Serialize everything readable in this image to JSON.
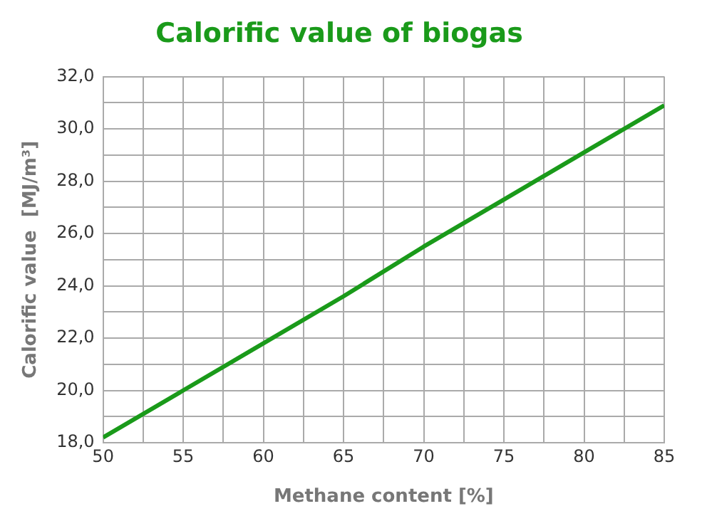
{
  "chart_data": {
    "type": "line",
    "title": "Calorific value of biogas",
    "xlabel": "Methane content [%]",
    "ylabel": "Calorific value  [MJ/m³]",
    "x": [
      50,
      55,
      60,
      65,
      70,
      75,
      80,
      85
    ],
    "series": [
      {
        "color": "#1a9a1a",
        "values": [
          18.2,
          20.0,
          21.8,
          23.6,
          25.5,
          27.3,
          29.1,
          30.9
        ]
      }
    ],
    "xlim": [
      50,
      85
    ],
    "xticks": [
      50,
      {
        "value": 52.5,
        "label": null
      },
      55,
      {
        "value": 57.5,
        "label": null
      },
      60,
      {
        "value": 62.5,
        "label": null
      },
      65,
      {
        "value": 67.5,
        "label": null
      },
      70,
      {
        "value": 72.5,
        "label": null
      },
      75,
      {
        "value": 77.5,
        "label": null
      },
      80,
      {
        "value": 82.5,
        "label": null
      },
      85
    ],
    "ylim": [
      18,
      32
    ],
    "yticks": [
      {
        "value": 18,
        "label": "18,0"
      },
      {
        "value": 19,
        "label": null
      },
      {
        "value": 20,
        "label": "20,0"
      },
      {
        "value": 21,
        "label": null
      },
      {
        "value": 22,
        "label": "22,0"
      },
      {
        "value": 23,
        "label": null
      },
      {
        "value": 24,
        "label": "24,0"
      },
      {
        "value": 25,
        "label": null
      },
      {
        "value": 26,
        "label": "26,0"
      },
      {
        "value": 27,
        "label": null
      },
      {
        "value": 28,
        "label": "28,0"
      },
      {
        "value": 29,
        "label": null
      },
      {
        "value": 30,
        "label": "30,0"
      },
      {
        "value": 31,
        "label": null
      },
      {
        "value": 32,
        "label": "32,0"
      }
    ],
    "grid": true,
    "legend": false,
    "marker": "none",
    "line_style": "solid"
  }
}
